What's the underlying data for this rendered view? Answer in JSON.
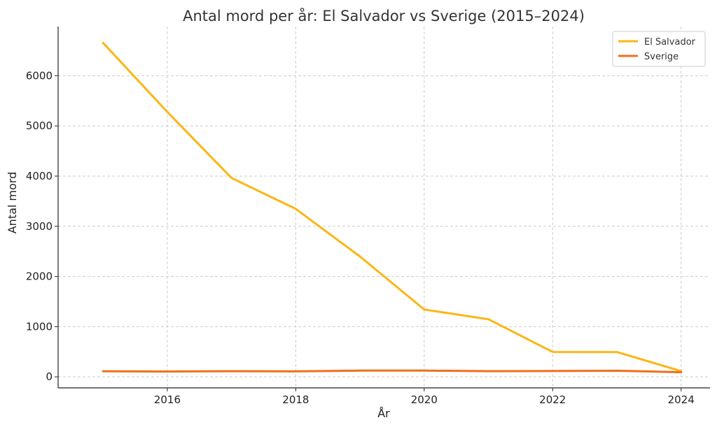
{
  "chart_data": {
    "type": "line",
    "title": "Antal mord per år: El Salvador vs Sverige (2015–2024)",
    "xlabel": "År",
    "ylabel": "Antal mord",
    "x": [
      2015,
      2016,
      2017,
      2018,
      2019,
      2020,
      2021,
      2022,
      2023,
      2024
    ],
    "xlim": [
      2014.3,
      2024.45
    ],
    "ylim": [
      -220,
      6980
    ],
    "xticks": [
      2016,
      2018,
      2020,
      2022,
      2024
    ],
    "yticks": [
      0,
      1000,
      2000,
      3000,
      4000,
      5000,
      6000
    ],
    "grid": true,
    "legend_position": "top-right",
    "series": [
      {
        "name": "El Salvador",
        "color": "#FDB515",
        "values": [
          6656,
          5280,
          3962,
          3346,
          2398,
          1341,
          1147,
          496,
          495,
          114
        ]
      },
      {
        "name": "Sverige",
        "color": "#EF6F1E",
        "values": [
          112,
          106,
          113,
          108,
          124,
          124,
          113,
          116,
          121,
          92
        ]
      }
    ]
  }
}
